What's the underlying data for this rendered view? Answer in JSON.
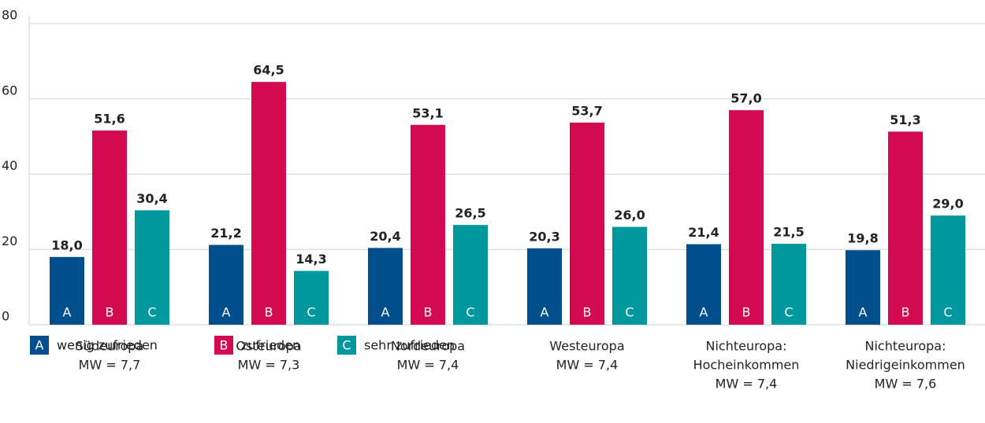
{
  "chart_data": {
    "type": "bar",
    "categories": [
      [
        "Südeuropa",
        "MW = 7,7"
      ],
      [
        "Osteuropa",
        "MW = 7,3"
      ],
      [
        "Nordeuropa",
        "MW = 7,4"
      ],
      [
        "Westeuropa",
        "MW = 7,4"
      ],
      [
        "Nichteuropa:",
        "Hocheinkommen",
        "MW = 7,4"
      ],
      [
        "Nichteuropa:",
        "Niedrigeinkommen",
        "MW = 7,6"
      ]
    ],
    "series": [
      {
        "name": "wenig zufrieden",
        "label": "A",
        "color": "#004f8c",
        "values": [
          18.0,
          21.2,
          20.4,
          20.3,
          21.4,
          19.8
        ],
        "value_labels": [
          "18,0",
          "21,2",
          "20,4",
          "20,3",
          "21,4",
          "19,8"
        ]
      },
      {
        "name": "zufrieden",
        "label": "B",
        "color": "#d30a52",
        "values": [
          51.6,
          64.5,
          53.1,
          53.7,
          57.0,
          51.3
        ],
        "value_labels": [
          "51,6",
          "64,5",
          "53,1",
          "53,7",
          "57,0",
          "51,3"
        ]
      },
      {
        "name": "sehr zufrieden",
        "label": "C",
        "color": "#00979d",
        "values": [
          30.4,
          14.3,
          26.5,
          26.0,
          21.5,
          29.0
        ],
        "value_labels": [
          "30,4",
          "14,3",
          "26,5",
          "26,0",
          "21,5",
          "29,0"
        ]
      }
    ],
    "ylim": [
      0,
      80
    ],
    "yticks": [
      0,
      20,
      40,
      60,
      80
    ],
    "grid": true,
    "legend": "bottom-left"
  }
}
